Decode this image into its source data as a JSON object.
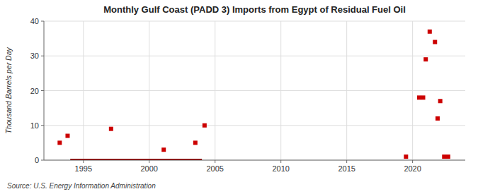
{
  "chart_data": {
    "type": "scatter",
    "title": "Monthly Gulf Coast (PADD 3) Imports from Egypt of Residual Fuel Oil",
    "y_label": "Thousand Barrels per Day",
    "source": "Source: U.S. Energy Information Administration",
    "xlim": [
      1992,
      2024
    ],
    "ylim": [
      0,
      40
    ],
    "xticks": [
      1995,
      2000,
      2005,
      2010,
      2015,
      2020
    ],
    "yticks": [
      0,
      10,
      20,
      30,
      40
    ],
    "grid": true,
    "series": [
      {
        "type": "line",
        "color": "#8b1a1a",
        "x": [
          1994.0,
          2004.0
        ],
        "values": [
          0,
          0
        ]
      },
      {
        "type": "scatter",
        "color": "#cc0000",
        "marker": "square",
        "x": [
          1993.2,
          1993.8,
          1997.1,
          2001.1,
          2003.5,
          2004.2,
          2019.5,
          2020.5,
          2020.8,
          2021.0,
          2021.3,
          2021.7,
          2021.9,
          2022.1,
          2022.4,
          2022.7
        ],
        "values": [
          5,
          7,
          9,
          3,
          5,
          10,
          1,
          18,
          18,
          29,
          37,
          34,
          12,
          17,
          1,
          1
        ]
      }
    ]
  }
}
